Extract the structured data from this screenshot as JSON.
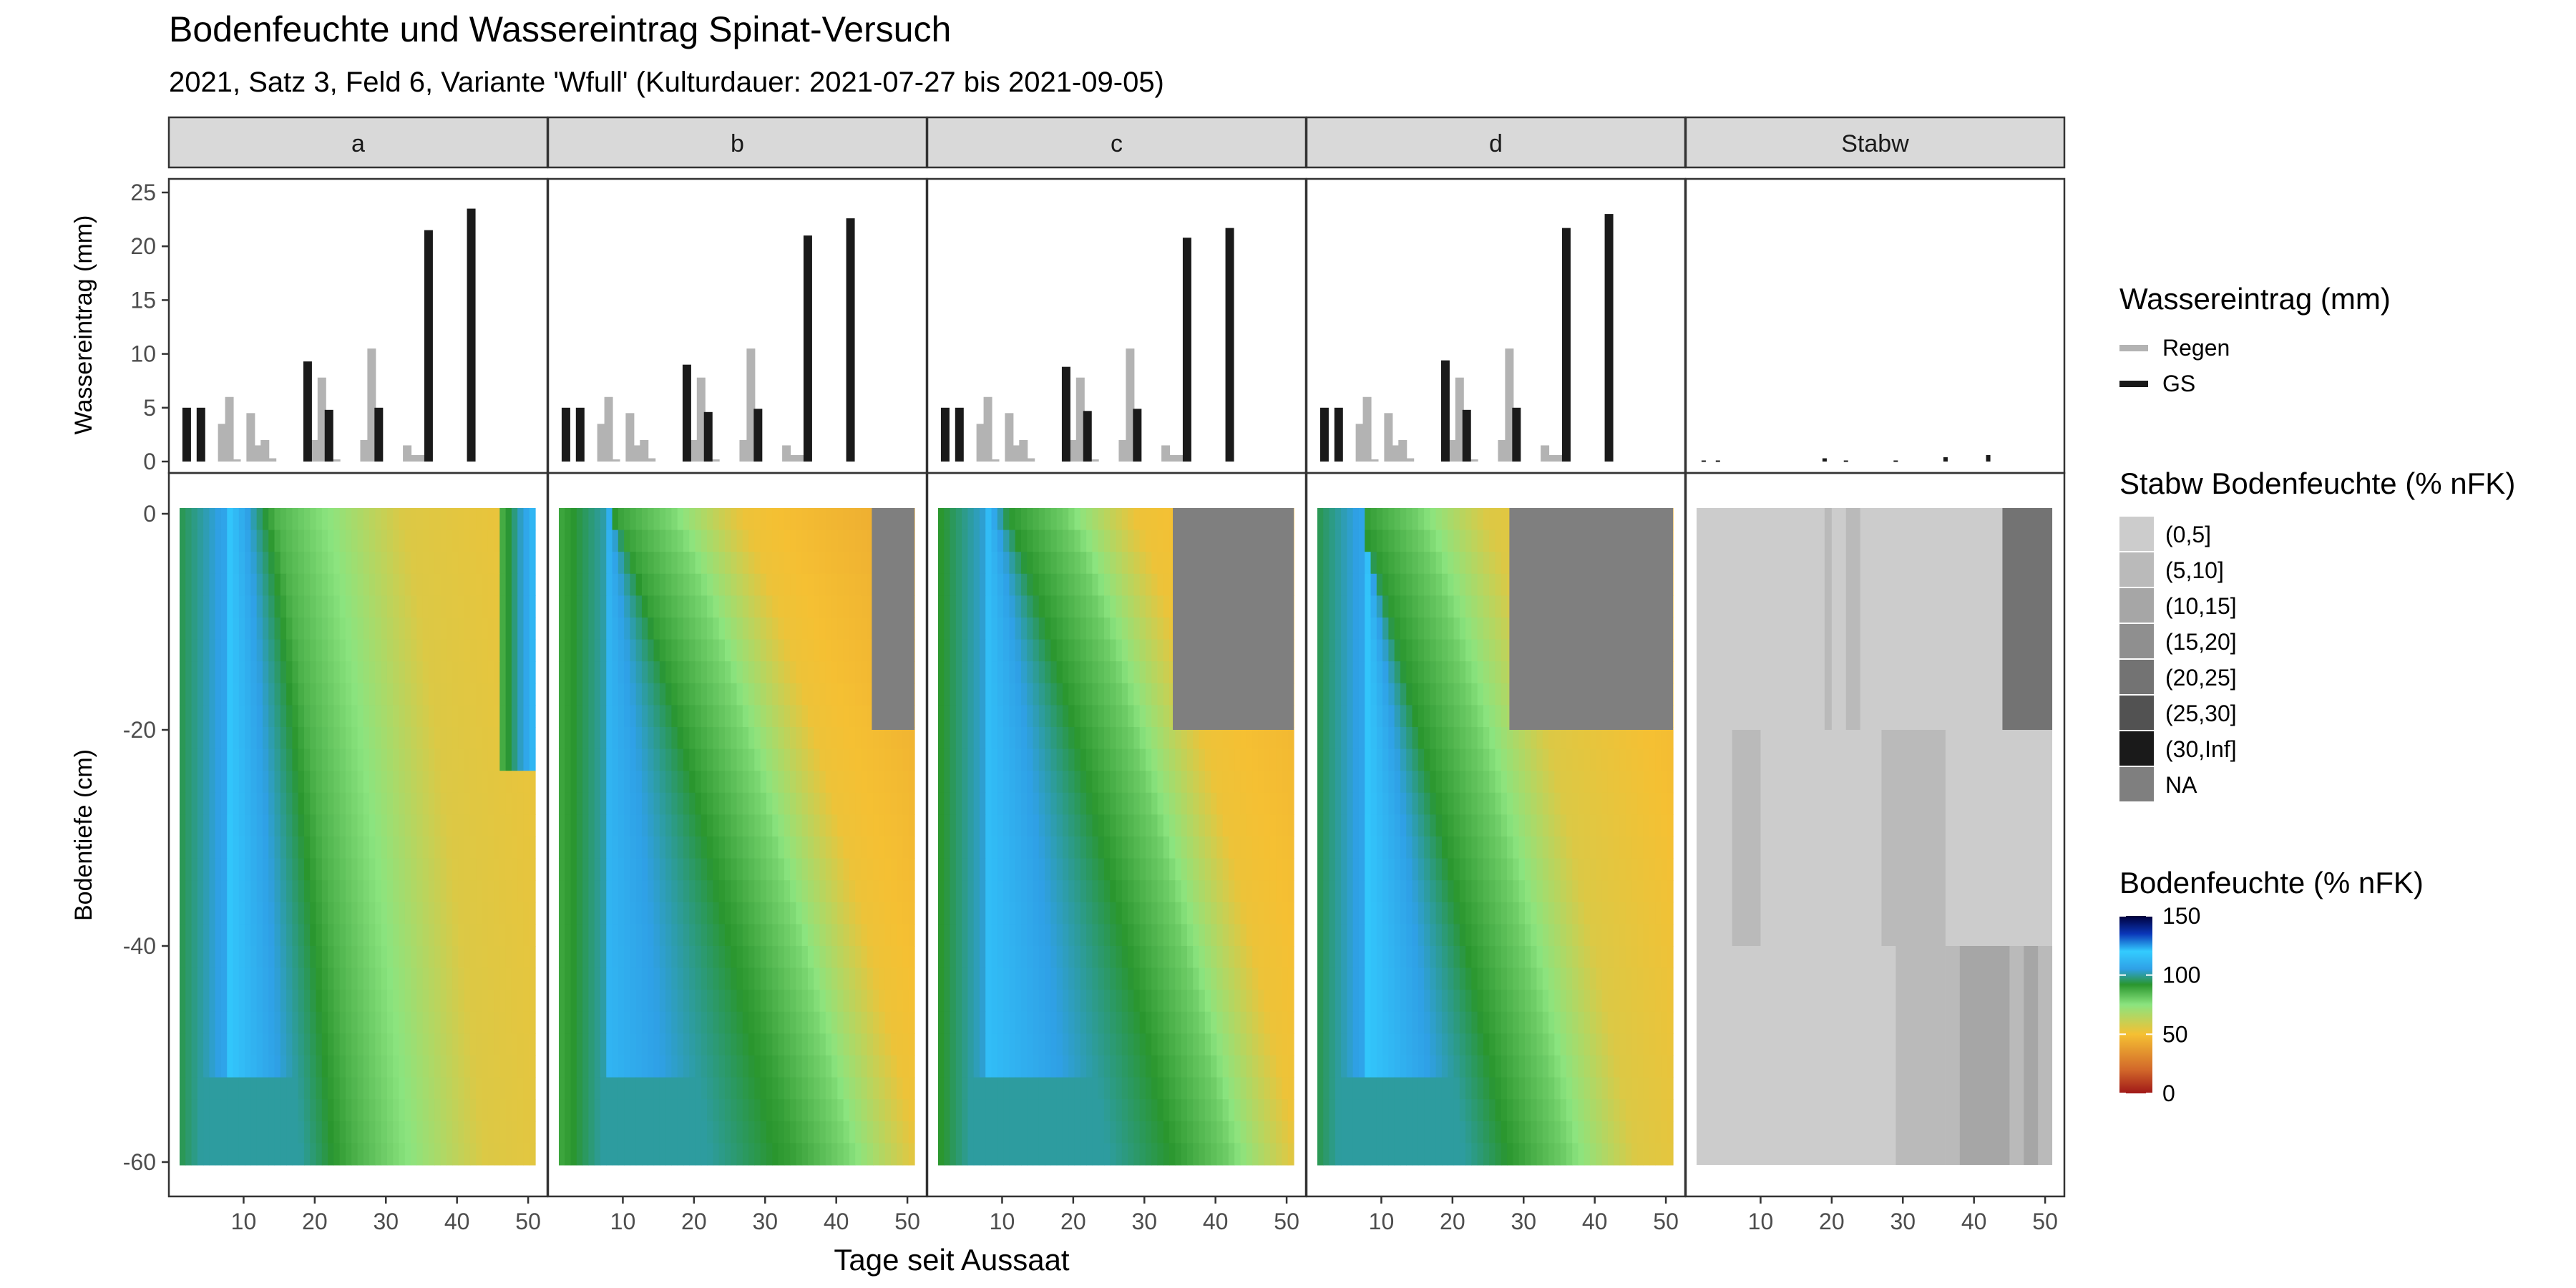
{
  "title": "Bodenfeuchte und Wassereintrag Spinat-Versuch",
  "subtitle": "2021, Satz 3, Feld 6, Variante 'Wfull' (Kulturdauer: 2021-07-27 bis 2021-09-05)",
  "panels": [
    "a",
    "b",
    "c",
    "d",
    "Stabw"
  ],
  "xlabel": "Tage seit Aussaat",
  "ylabel_top": "Wassereintrag (mm)",
  "ylabel_bottom": "Bodentiefe (cm)",
  "legend_water": {
    "title": "Wassereintrag (mm)",
    "items": [
      {
        "label": "Regen",
        "color": "#b3b3b3"
      },
      {
        "label": "GS",
        "color": "#1a1a1a"
      }
    ]
  },
  "legend_stabw": {
    "title": "Stabw Bodenfeuchte (% nFK)",
    "items": [
      {
        "label": "(0,5]",
        "color": "#cccccc"
      },
      {
        "label": "(5,10]",
        "color": "#bababa"
      },
      {
        "label": "(10,15]",
        "color": "#a6a6a6"
      },
      {
        "label": "(15,20]",
        "color": "#8f8f8f"
      },
      {
        "label": "(20,25]",
        "color": "#737373"
      },
      {
        "label": "(25,30]",
        "color": "#525252"
      },
      {
        "label": "(30,Inf]",
        "color": "#1a1a1a"
      },
      {
        "label": "NA",
        "color": "#7f7f7f"
      }
    ]
  },
  "legend_moisture": {
    "title": "Bodenfeuchte (% nFK)",
    "ticks": [
      "150",
      "100",
      "50",
      "0"
    ],
    "colors": [
      "#a01818",
      "#d2682a",
      "#f5c033",
      "#8be47f",
      "#2a962e",
      "#2fa0e6",
      "#33ccff",
      "#0a36b8",
      "#00003a"
    ]
  },
  "chart_data": {
    "type": "bar",
    "facets": [
      "a",
      "b",
      "c",
      "d",
      "Stabw"
    ],
    "x_axis": {
      "label": "Tage seit Aussaat",
      "range": [
        0,
        50
      ],
      "ticks": [
        10,
        20,
        30,
        40,
        50
      ]
    },
    "water_input": {
      "ylabel": "Wassereintrag (mm)",
      "ylim": [
        0,
        25
      ],
      "yticks": [
        0,
        5,
        10,
        15,
        20,
        25
      ],
      "series_names": [
        "Regen",
        "GS"
      ],
      "regen_days": [
        1,
        2,
        3,
        4,
        5,
        6,
        7,
        8,
        9,
        10,
        11,
        12,
        13,
        14,
        15,
        16,
        17,
        18,
        19,
        20,
        21,
        22,
        23,
        24,
        25,
        26,
        27,
        28,
        29,
        30,
        31,
        32,
        33,
        34,
        35,
        36,
        37,
        38,
        39,
        40,
        41,
        42,
        43,
        44,
        45,
        46,
        47,
        48,
        49,
        50
      ],
      "regen_mm": [
        0,
        0,
        0,
        0,
        0,
        0,
        3.5,
        6,
        0.2,
        0,
        4.5,
        1.5,
        2,
        0.3,
        0,
        0,
        0,
        0,
        0,
        2,
        7.8,
        0,
        0.2,
        0,
        0,
        0,
        2,
        10.5,
        0,
        0,
        0,
        0,
        1.5,
        0.6,
        0.6,
        0,
        0,
        0,
        0,
        0,
        0,
        0,
        0,
        0,
        0,
        0,
        0,
        0,
        0,
        0
      ],
      "gs_days": [
        2,
        4,
        19,
        22,
        29,
        36,
        42
      ],
      "gs_mm": {
        "a": [
          5,
          5,
          9.3,
          4.8,
          5,
          21.5,
          23.5
        ],
        "b": [
          5,
          5,
          9,
          4.6,
          4.9,
          21,
          22.6
        ],
        "c": [
          5,
          5,
          8.8,
          4.7,
          4.9,
          20.8,
          21.7
        ],
        "d": [
          5,
          5,
          9.4,
          4.8,
          5,
          21.7,
          23
        ],
        "Stabw": [
          0.1,
          0.1,
          0.3,
          0.1,
          0.1,
          0.4,
          0.6
        ]
      }
    },
    "soil_moisture": {
      "ylabel": "Bodentiefe (cm)",
      "ylim": [
        -60,
        0
      ],
      "yticks": [
        0,
        -20,
        -40,
        -60
      ],
      "unit": "% nFK",
      "color_range": [
        0,
        150
      ],
      "na_regions": {
        "a": [],
        "b": [
          {
            "x": [
              45,
              51
            ],
            "depth": [
              0,
              -20
            ]
          }
        ],
        "c": [
          {
            "x": [
              34,
              51
            ],
            "depth": [
              0,
              -20
            ]
          }
        ],
        "d": [
          {
            "x": [
              28,
              51
            ],
            "depth": [
              0,
              -20
            ]
          }
        ]
      },
      "stabw_classes": [
        {
          "x": [
            1,
            51
          ],
          "depth": [
            0,
            -60
          ],
          "class": "(0,5]"
        },
        {
          "x": [
            19,
            20
          ],
          "depth": [
            0,
            -20
          ],
          "class": "(5,10]"
        },
        {
          "x": [
            22,
            24
          ],
          "depth": [
            0,
            -20
          ],
          "class": "(5,10]"
        },
        {
          "x": [
            44,
            51
          ],
          "depth": [
            0,
            -20
          ],
          "class": "(20,25]"
        },
        {
          "x": [
            6,
            10
          ],
          "depth": [
            -20,
            -40
          ],
          "class": "(5,10]"
        },
        {
          "x": [
            27,
            36
          ],
          "depth": [
            -20,
            -40
          ],
          "class": "(5,10]"
        },
        {
          "x": [
            36,
            51
          ],
          "depth": [
            -40,
            -60
          ],
          "class": "(5,10]"
        },
        {
          "x": [
            29,
            36
          ],
          "depth": [
            -40,
            -60
          ],
          "class": "(5,10]"
        },
        {
          "x": [
            38,
            45
          ],
          "depth": [
            -40,
            -60
          ],
          "class": "(10,15]"
        },
        {
          "x": [
            47,
            49
          ],
          "depth": [
            -40,
            -60
          ],
          "class": "(10,15]"
        }
      ]
    }
  }
}
